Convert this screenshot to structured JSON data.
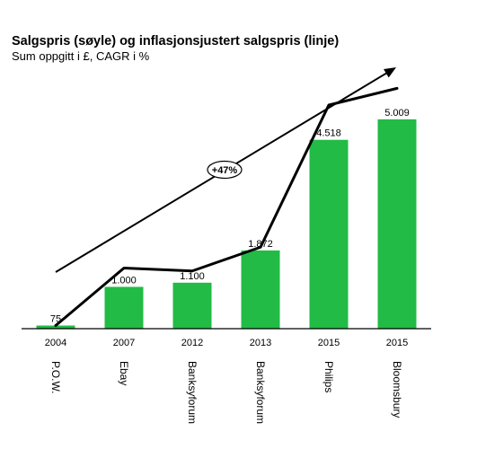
{
  "chart_data": {
    "type": "bar",
    "title": "Salgspris (søyle) og inflasjonsjustert salgspris (linje)",
    "subtitle": "Sum oppgitt i £, CAGR i %",
    "years": [
      "2004",
      "2007",
      "2012",
      "2013",
      "2015",
      "2015"
    ],
    "sellers": [
      "P.O.W.",
      "Ebay",
      "Banksyforum",
      "Banksyforum",
      "Philips",
      "Bloomsbury"
    ],
    "values": [
      75,
      1000,
      1100,
      1872,
      4518,
      5009
    ],
    "value_labels": [
      "75",
      "1.000",
      "1.100",
      "1.872",
      "4.518",
      "5.009"
    ],
    "inflation_adjusted": [
      75,
      1450,
      1380,
      1950,
      5350,
      5750
    ],
    "ylim": [
      0,
      5500
    ],
    "cagr_label": "+47%",
    "bar_color": "#22bb45",
    "line_color": "#000000"
  }
}
